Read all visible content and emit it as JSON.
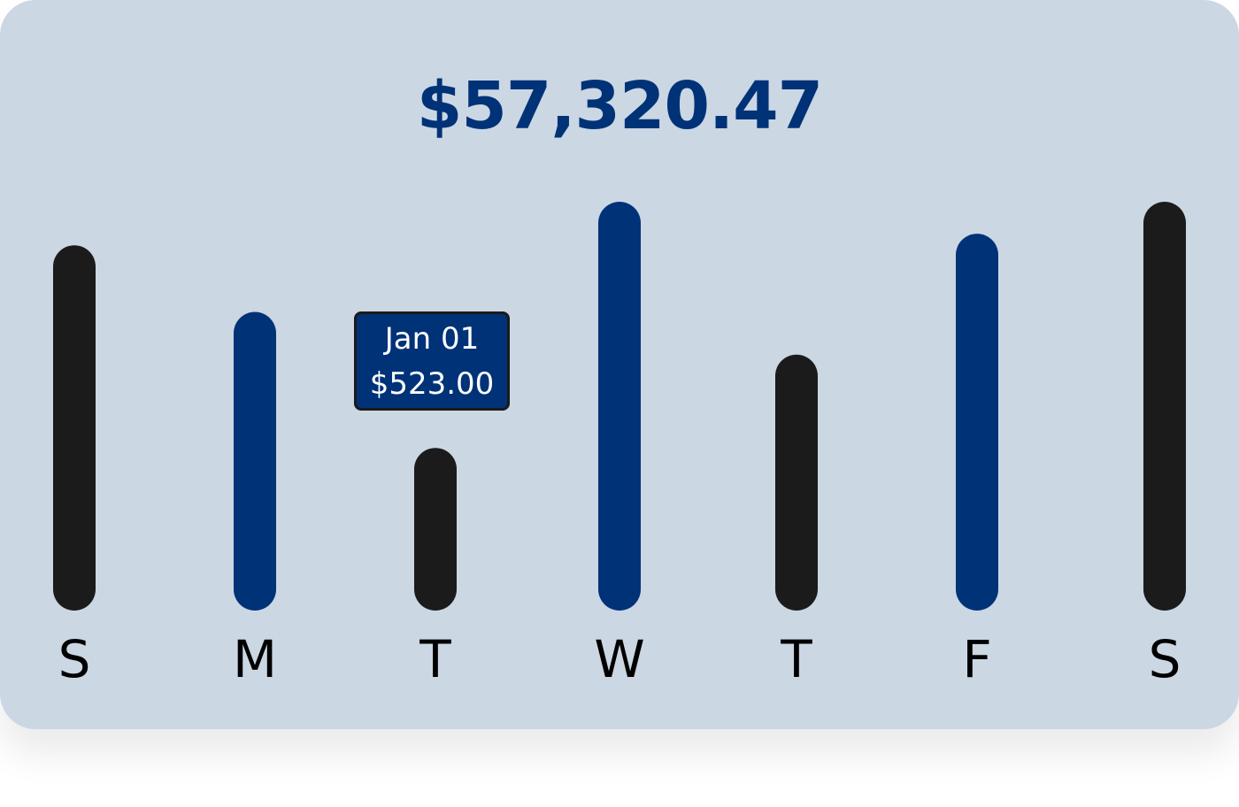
{
  "summary": {
    "total": "$57,320.47"
  },
  "tooltip": {
    "date": "Jan 01",
    "amount": "$523.00"
  },
  "colors": {
    "card_background": "#cbd7e3",
    "accent_blue": "#003278",
    "dark_bar": "#1b1b1b",
    "label_text": "#000000",
    "tooltip_text": "#ffffff"
  },
  "chart_data": {
    "type": "bar",
    "title": "$57,320.47",
    "categories": [
      "S",
      "M",
      "T",
      "W",
      "T",
      "F",
      "S"
    ],
    "values": [
      411,
      336,
      183,
      460,
      288,
      424,
      460
    ],
    "bar_colors": [
      "dark",
      "blue",
      "dark",
      "blue",
      "dark",
      "blue",
      "dark"
    ],
    "ylim": [
      0,
      460
    ],
    "grid": false,
    "legend": "none",
    "highlighted": {
      "index": 2,
      "label": "Jan 01",
      "value_label": "$523.00"
    }
  }
}
